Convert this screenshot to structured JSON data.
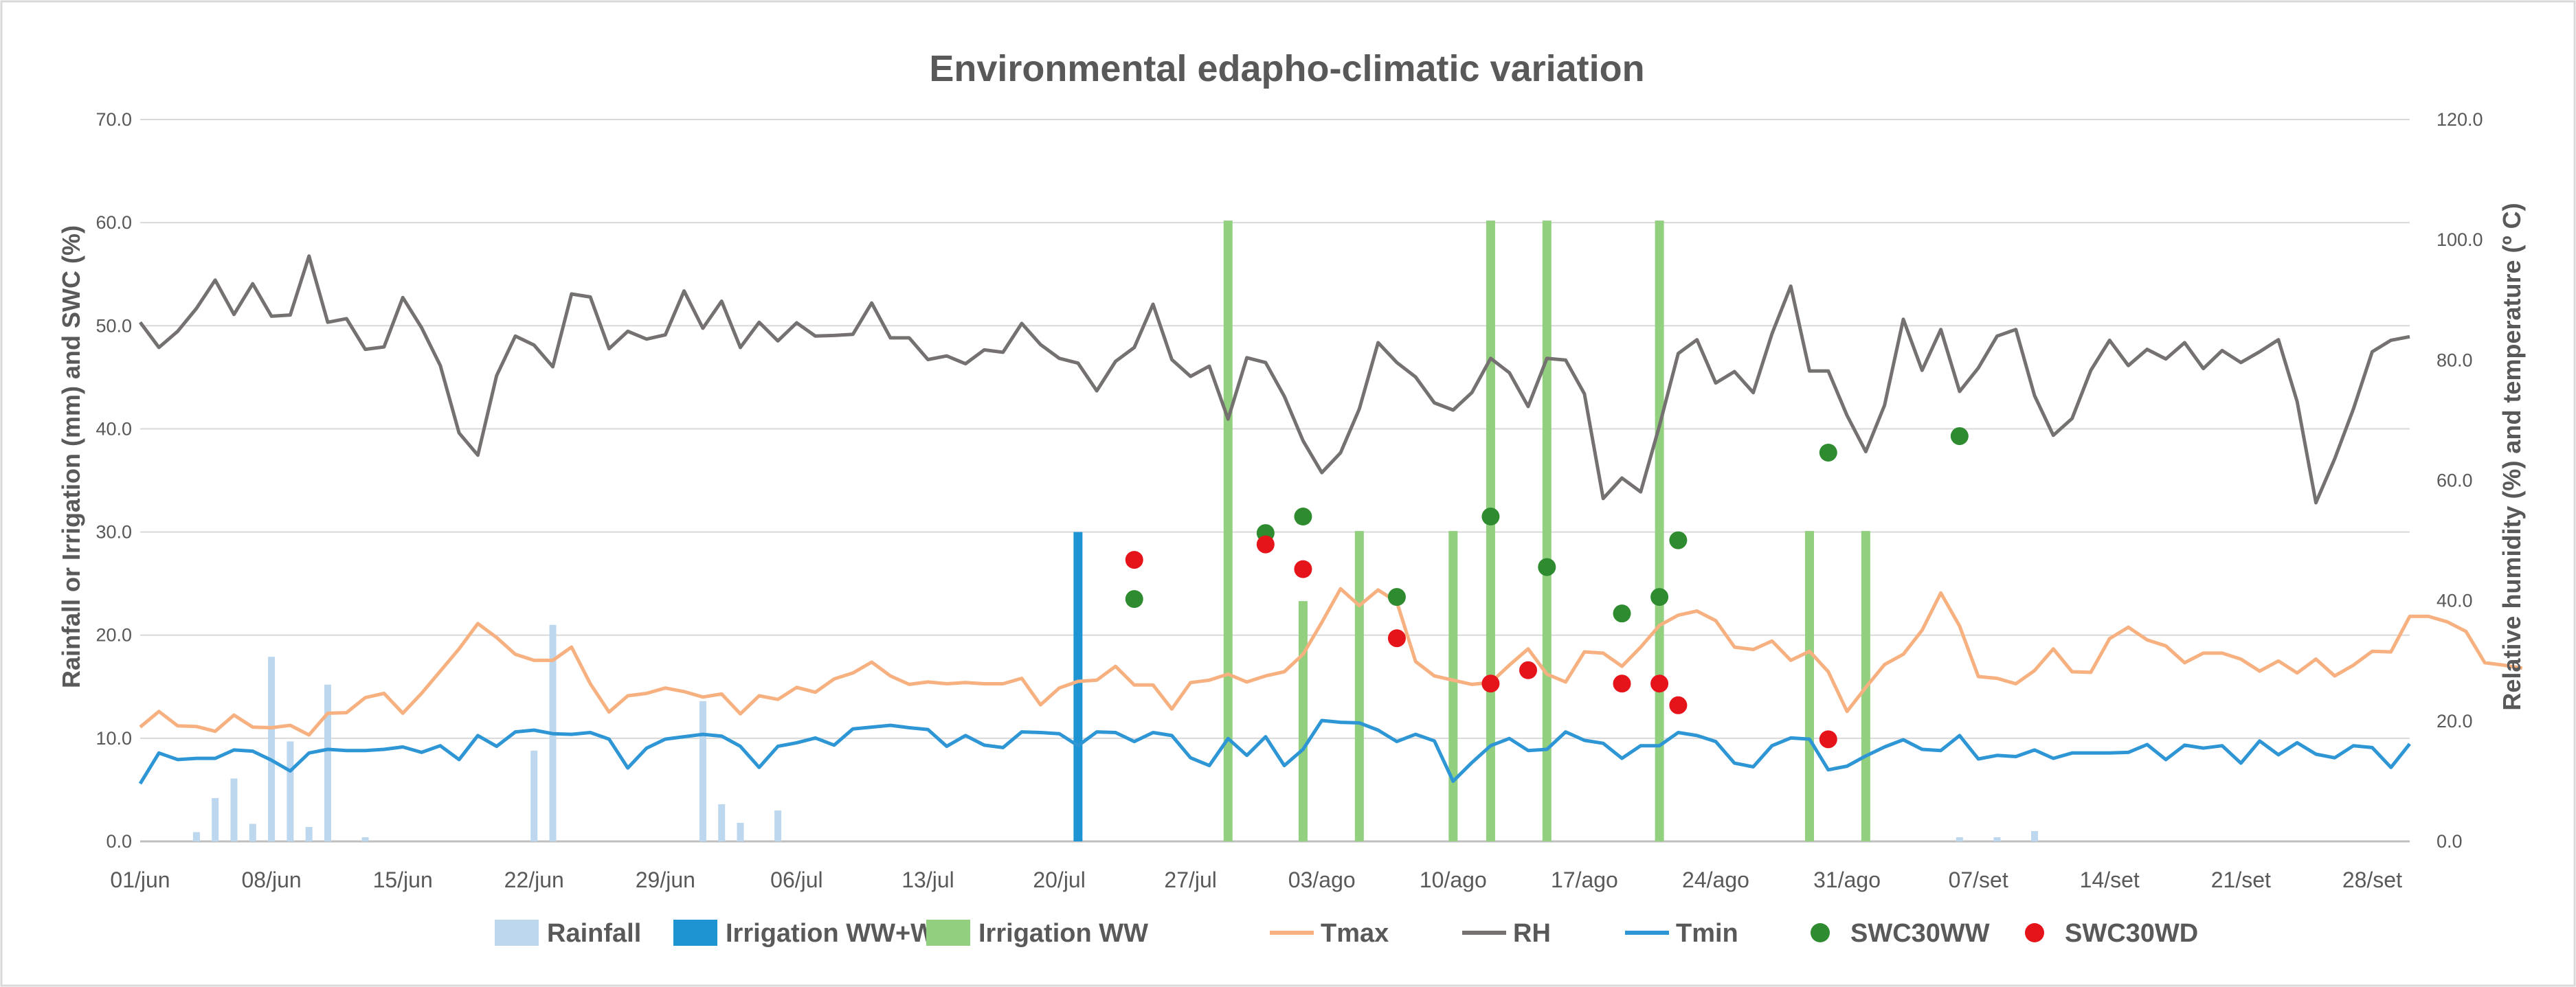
{
  "chart_data": {
    "type": "combo-bar-line-scatter",
    "title": "Environmental edapho-climatic variation",
    "ylabel_left": "Rainfall or Irrigation (mm) and SWC (%)",
    "ylabel_right": "Relative humidity (%) and temperature (º C)",
    "ylim_left": [
      0,
      70
    ],
    "ylim_right": [
      0,
      120
    ],
    "y_ticks_left": [
      "0.0",
      "10.0",
      "20.0",
      "30.0",
      "40.0",
      "50.0",
      "60.0",
      "70.0"
    ],
    "y_ticks_right": [
      "0.0",
      "20.0",
      "40.0",
      "60.0",
      "80.0",
      "100.0",
      "120.0"
    ],
    "grid": true,
    "x_start": "01/jun",
    "x_tick_labels": [
      "01/jun",
      "08/jun",
      "15/jun",
      "22/jun",
      "29/jun",
      "06/jul",
      "13/jul",
      "20/jul",
      "27/jul",
      "03/ago",
      "10/ago",
      "17/ago",
      "24/ago",
      "31/ago",
      "07/set",
      "14/set",
      "21/set",
      "28/set"
    ],
    "legend_position": "bottom",
    "series": [
      {
        "name": "Rainfall",
        "type": "bar",
        "axis": "left",
        "color": "#bdd7ee",
        "points": [
          [
            3,
            0.9
          ],
          [
            4,
            4.2
          ],
          [
            5,
            6.1
          ],
          [
            6,
            1.7
          ],
          [
            7,
            17.9
          ],
          [
            8,
            9.7
          ],
          [
            9,
            1.4
          ],
          [
            10,
            15.2
          ],
          [
            12,
            0.4
          ],
          [
            21,
            8.8
          ],
          [
            22,
            21.0
          ],
          [
            30,
            13.6
          ],
          [
            31,
            3.6
          ],
          [
            32,
            1.8
          ],
          [
            34,
            3.0
          ],
          [
            97,
            0.4
          ],
          [
            99,
            0.4
          ],
          [
            101,
            1.0
          ]
        ]
      },
      {
        "name": "Irrigation WW+WD",
        "type": "bar",
        "axis": "left",
        "color": "#1f94d2",
        "points": [
          [
            50,
            30.0
          ]
        ]
      },
      {
        "name": "Irrigation WW",
        "type": "bar",
        "axis": "left",
        "color": "#92d080",
        "points": [
          [
            58,
            60.2
          ],
          [
            62,
            23.3
          ],
          [
            65,
            30.1
          ],
          [
            70,
            30.1
          ],
          [
            72,
            60.2
          ],
          [
            75,
            60.2
          ],
          [
            81,
            60.2
          ],
          [
            89,
            30.1
          ],
          [
            92,
            30.1
          ]
        ]
      },
      {
        "name": "Tmax",
        "type": "line",
        "axis": "right",
        "color": "#f7b07f",
        "values": [
          19,
          21.6,
          19.2,
          19.1,
          18.3,
          21,
          19,
          18.9,
          19.3,
          17.7,
          21.3,
          21.4,
          23.9,
          24.6,
          21.3,
          24.6,
          28.3,
          32,
          36.2,
          33.9,
          31.1,
          30.1,
          30.1,
          32.3,
          26.2,
          21.5,
          24.2,
          24.6,
          25.5,
          24.9,
          24,
          24.5,
          21.2,
          24.2,
          23.6,
          25.6,
          24.8,
          27,
          28,
          29.8,
          27.5,
          26.1,
          26.5,
          26.2,
          26.4,
          26.2,
          26.2,
          27.1,
          22.7,
          25.5,
          26.6,
          26.8,
          29.1,
          26,
          26,
          22,
          26.4,
          26.8,
          27.8,
          26.5,
          27.5,
          28.2,
          31.1,
          36.4,
          42,
          39.2,
          41.8,
          39.8,
          29.9,
          27.5,
          26.8,
          26.1,
          26.4,
          29.3,
          32,
          27.8,
          26.5,
          31.5,
          31.3,
          29.1,
          32.3,
          35.9,
          37.6,
          38.3,
          36.7,
          32.3,
          31.9,
          33.3,
          30.1,
          31.6,
          28.2,
          21.6,
          25.6,
          29.4,
          31.1,
          35.1,
          41.3,
          35.8,
          27.4,
          27.1,
          26.2,
          28.4,
          32,
          28.2,
          28.1,
          33.7,
          35.6,
          33.5,
          32.5,
          29.7,
          31.3,
          31.3,
          30.3,
          28.3,
          30,
          28,
          30.3,
          27.5,
          29.3,
          31.6,
          31.5,
          37.4,
          37.4,
          36.5,
          34.9,
          29.7,
          29.3,
          28.8
        ]
      },
      {
        "name": "RH",
        "type": "line",
        "axis": "right",
        "color": "#767171",
        "values": [
          86.3,
          82.1,
          84.8,
          88.6,
          93.3,
          87.6,
          92.7,
          87.3,
          87.5,
          97.3,
          86.3,
          86.9,
          81.8,
          82.2,
          90.4,
          85.4,
          79.1,
          67.9,
          64.2,
          77.4,
          84,
          82.5,
          78.9,
          91,
          90.5,
          81.9,
          84.8,
          83.5,
          84.2,
          91.5,
          85.3,
          89.8,
          82.1,
          86.3,
          83.2,
          86.2,
          84,
          84.1,
          84.3,
          89.5,
          83.7,
          83.7,
          80.1,
          80.7,
          79.4,
          81.7,
          81.3,
          86.1,
          82.6,
          80.3,
          79.5,
          74.9,
          79.8,
          82.1,
          89.3,
          80.1,
          77.3,
          79,
          70.2,
          80.4,
          79.6,
          74,
          66.6,
          61.3,
          64.6,
          71.9,
          82.9,
          79.6,
          77.2,
          72.9,
          71.7,
          74.6,
          80.3,
          77.9,
          72.3,
          80.3,
          80,
          74.4,
          57,
          60.4,
          58.1,
          69.1,
          81.1,
          83.4,
          76.2,
          78.1,
          74.6,
          84.4,
          92.3,
          78.2,
          78.2,
          70.8,
          64.8,
          72.5,
          86.8,
          78.3,
          85.1,
          74.8,
          78.7,
          84,
          85.1,
          74.1,
          67.5,
          70.3,
          78.3,
          83.3,
          79.1,
          81.8,
          80.2,
          82.9,
          78.6,
          81.6,
          79.6,
          81.4,
          83.4,
          73.1,
          56.3,
          63.6,
          71.9,
          81.4,
          83.3,
          83.9
        ]
      },
      {
        "name": "Tmin",
        "type": "line",
        "axis": "right",
        "color": "#2e96d4",
        "values": [
          9.6,
          14.7,
          13.6,
          13.8,
          13.8,
          15.2,
          15,
          13.5,
          11.7,
          14.7,
          15.3,
          15.1,
          15.1,
          15.3,
          15.7,
          14.8,
          15.9,
          13.6,
          17.6,
          15.8,
          18.2,
          18.5,
          17.9,
          17.8,
          18.1,
          17,
          12.2,
          15.5,
          17,
          17.4,
          17.8,
          17.5,
          15.8,
          12.3,
          15.8,
          16.4,
          17.2,
          16,
          18.7,
          19,
          19.3,
          18.9,
          18.6,
          15.8,
          17.6,
          16,
          15.6,
          18.2,
          18.1,
          17.9,
          15.9,
          18.2,
          18.1,
          16.6,
          18.1,
          17.6,
          13.9,
          12.6,
          17.1,
          14.3,
          17.4,
          12.6,
          15.3,
          20.1,
          19.8,
          19.7,
          18.5,
          16.6,
          17.8,
          16.7,
          10,
          13.1,
          15.9,
          17.1,
          15.1,
          15.3,
          18.2,
          16.8,
          16.3,
          13.8,
          15.9,
          15.9,
          18.1,
          17.6,
          16.6,
          13,
          12.4,
          15.9,
          17.2,
          17,
          11.9,
          12.5,
          14.2,
          15.7,
          16.9,
          15.3,
          15.1,
          17.6,
          13.7,
          14.3,
          14.1,
          15.2,
          13.8,
          14.7,
          14.7,
          14.7,
          14.8,
          16.1,
          13.6,
          16,
          15.5,
          15.9,
          13,
          16.7,
          14.4,
          16.4,
          14.5,
          13.9,
          15.9,
          15.6,
          12.3,
          16.2
        ]
      },
      {
        "name": "SWC30WW",
        "type": "scatter",
        "axis": "left",
        "color": "#2e8b30",
        "points": [
          [
            53,
            23.5
          ],
          [
            60,
            29.9
          ],
          [
            62,
            31.5
          ],
          [
            67,
            23.7
          ],
          [
            72,
            31.5
          ],
          [
            75,
            26.6
          ],
          [
            79,
            22.1
          ],
          [
            81,
            23.7
          ],
          [
            82,
            29.2
          ],
          [
            90,
            37.7
          ],
          [
            97,
            39.3
          ]
        ]
      },
      {
        "name": "SWC30WD",
        "type": "scatter",
        "axis": "left",
        "color": "#e5141a",
        "points": [
          [
            53,
            27.3
          ],
          [
            60,
            28.8
          ],
          [
            62,
            26.4
          ],
          [
            67,
            19.7
          ],
          [
            72,
            15.3
          ],
          [
            74,
            16.6
          ],
          [
            79,
            15.3
          ],
          [
            81,
            15.3
          ],
          [
            82,
            13.2
          ],
          [
            90,
            9.9
          ]
        ]
      }
    ]
  }
}
